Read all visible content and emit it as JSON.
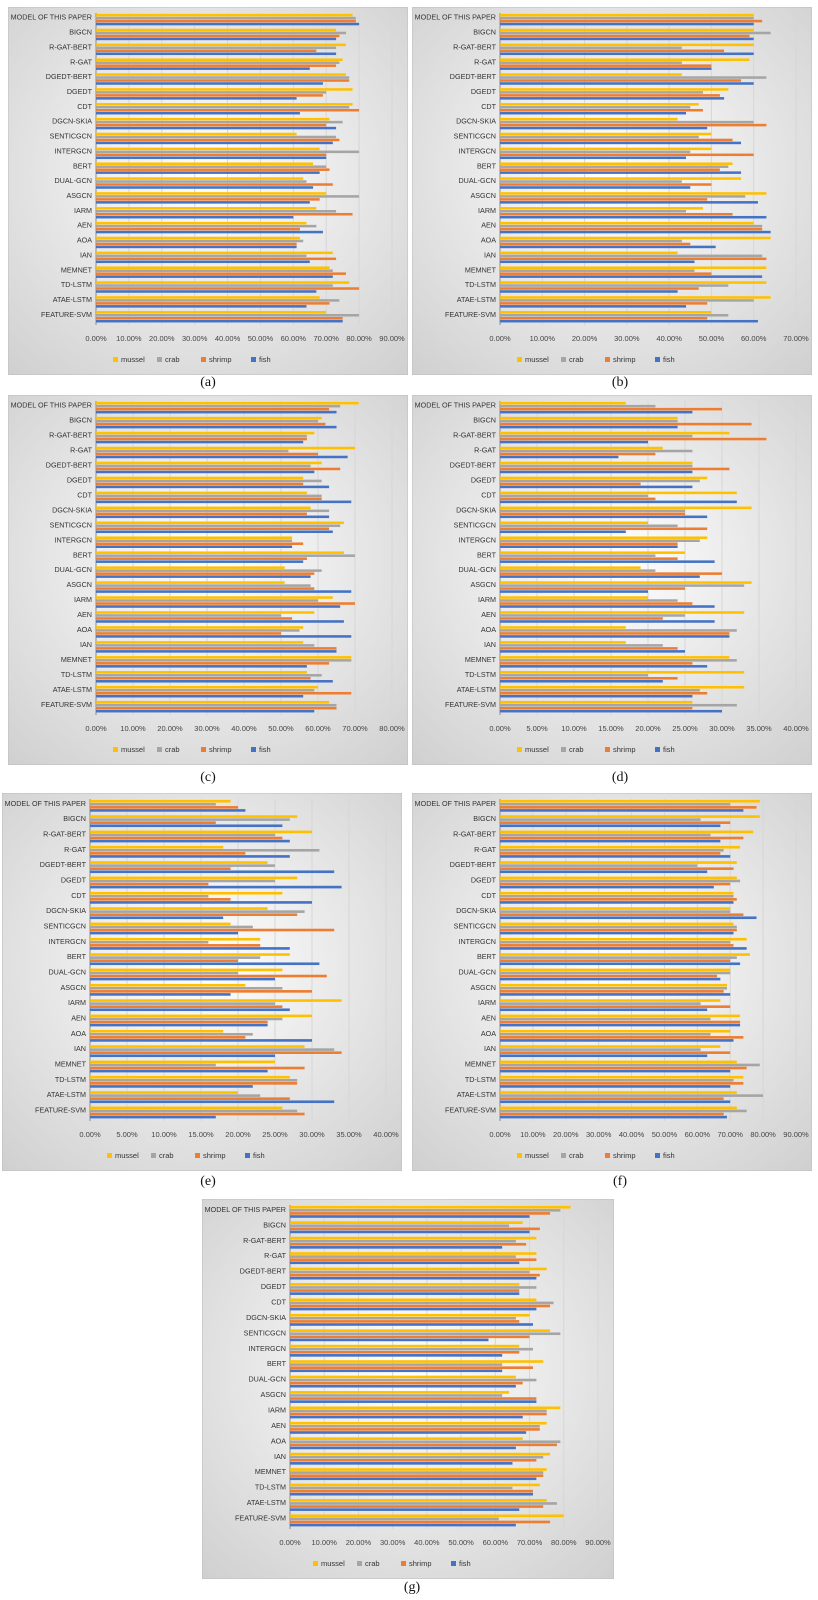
{
  "colors": {
    "mussel": "#FFC000",
    "crab": "#A5A5A5",
    "shrimp": "#ED7D31",
    "fish": "#4472C4"
  },
  "chart_data": [
    {
      "type": "bar",
      "caption": "(a)",
      "categories": [
        "MODEL OF THIS PAPER",
        "BIGCN",
        "R-GAT-BERT",
        "R-GAT",
        "DGEDT-BERT",
        "DGEDT",
        "CDT",
        "DGCN-SKIA",
        "SENTICGCN",
        "INTERGCN",
        "BERT",
        "DUAL-GCN",
        "ASGCN",
        "IARM",
        "AEN",
        "AOA",
        "IAN",
        "MEMNET",
        "TD-LSTM",
        "ATAE-LSTM",
        "FEATURE-SVM"
      ],
      "tick_labels": [
        "0.00%",
        "10.00%",
        "20.00%",
        "30.00%",
        "40.00%",
        "50.00%",
        "60.00%",
        "70.00%",
        "80.00%",
        "90.00%"
      ],
      "xlim": [
        0,
        90
      ],
      "legend": "bottom",
      "series": [
        {
          "name": "mussel",
          "values": [
            78,
            73,
            76,
            75,
            76,
            78,
            78,
            71,
            61,
            68,
            66,
            63,
            70,
            67,
            64,
            62,
            72,
            71,
            77,
            68,
            70
          ]
        },
        {
          "name": "crab",
          "values": [
            79,
            76,
            73,
            74,
            77,
            70,
            77,
            75,
            73,
            80,
            70,
            64,
            80,
            73,
            67,
            63,
            64,
            72,
            72,
            74,
            80
          ]
        },
        {
          "name": "shrimp",
          "values": [
            79,
            74,
            67,
            73,
            77,
            69,
            80,
            70,
            74,
            70,
            71,
            72,
            68,
            78,
            62,
            61,
            73,
            76,
            80,
            71,
            75
          ]
        },
        {
          "name": "fish",
          "values": [
            80,
            73,
            73,
            65,
            69,
            61,
            62,
            73,
            72,
            70,
            68,
            66,
            65,
            60,
            69,
            61,
            65,
            72,
            67,
            64,
            75
          ]
        }
      ]
    },
    {
      "type": "bar",
      "caption": "(b)",
      "categories": [
        "MODEL OF THIS PAPER",
        "BIGCN",
        "R-GAT-BERT",
        "R-GAT",
        "DGEDT-BERT",
        "DGEDT",
        "CDT",
        "DGCN-SKIA",
        "SENTICGCN",
        "INTERGCN",
        "BERT",
        "DUAL-GCN",
        "ASGCN",
        "IARM",
        "AEN",
        "AOA",
        "IAN",
        "MEMNET",
        "TD-LSTM",
        "ATAE-LSTM",
        "FEATURE-SVM"
      ],
      "tick_labels": [
        "0.00%",
        "10.00%",
        "20.00%",
        "30.00%",
        "40.00%",
        "50.00%",
        "60.00%",
        "70.00%"
      ],
      "xlim": [
        0,
        70
      ],
      "legend": "bottom",
      "series": [
        {
          "name": "mussel",
          "values": [
            60,
            60,
            60,
            59,
            43,
            54,
            47,
            42,
            50,
            50,
            55,
            57,
            63,
            48,
            60,
            64,
            42,
            63,
            63,
            64,
            50
          ]
        },
        {
          "name": "crab",
          "values": [
            60,
            64,
            43,
            43,
            63,
            48,
            45,
            60,
            47,
            45,
            54,
            43,
            58,
            44,
            62,
            43,
            62,
            46,
            54,
            60,
            54
          ]
        },
        {
          "name": "shrimp",
          "values": [
            62,
            59,
            53,
            50,
            57,
            52,
            48,
            63,
            55,
            60,
            52,
            50,
            49,
            55,
            62,
            45,
            63,
            50,
            47,
            49,
            49
          ]
        },
        {
          "name": "fish",
          "values": [
            60,
            60,
            60,
            50,
            60,
            53,
            44,
            49,
            57,
            44,
            57,
            45,
            61,
            63,
            64,
            51,
            46,
            62,
            42,
            44,
            61
          ]
        }
      ]
    },
    {
      "type": "bar",
      "caption": "(c)",
      "categories": [
        "MODEL OF THIS PAPER",
        "BIGCN",
        "R-GAT-BERT",
        "R-GAT",
        "DGEDT-BERT",
        "DGEDT",
        "CDT",
        "DGCN-SKIA",
        "SENTICGCN",
        "INTERGCN",
        "BERT",
        "DUAL-GCN",
        "ASGCN",
        "IARM",
        "AEN",
        "AOA",
        "IAN",
        "MEMNET",
        "TD-LSTM",
        "ATAE-LSTM",
        "FEATURE-SVM"
      ],
      "tick_labels": [
        "0.00%",
        "10.00%",
        "20.00%",
        "30.00%",
        "40.00%",
        "50.00%",
        "60.00%",
        "70.00%",
        "80.00%"
      ],
      "xlim": [
        0,
        80
      ],
      "legend": "bottom",
      "series": [
        {
          "name": "mussel",
          "values": [
            71,
            61,
            59,
            70,
            61,
            56,
            57,
            58,
            67,
            53,
            67,
            51,
            51,
            64,
            59,
            56,
            56,
            69,
            57,
            60,
            63
          ]
        },
        {
          "name": "crab",
          "values": [
            66,
            60,
            57,
            52,
            58,
            61,
            61,
            63,
            66,
            53,
            70,
            61,
            58,
            60,
            50,
            55,
            59,
            69,
            61,
            59,
            65
          ]
        },
        {
          "name": "shrimp",
          "values": [
            63,
            62,
            57,
            60,
            66,
            56,
            61,
            57,
            63,
            56,
            57,
            59,
            59,
            70,
            53,
            50,
            65,
            63,
            58,
            69,
            65
          ]
        },
        {
          "name": "fish",
          "values": [
            65,
            65,
            56,
            68,
            59,
            63,
            69,
            63,
            64,
            53,
            56,
            58,
            69,
            66,
            67,
            69,
            65,
            57,
            64,
            56,
            59
          ]
        }
      ]
    },
    {
      "type": "bar",
      "caption": "(d)",
      "categories": [
        "MODEL OF THIS PAPER",
        "BIGCN",
        "R-GAT-BERT",
        "R-GAT",
        "DGEDT-BERT",
        "DGEDT",
        "CDT",
        "DGCN-SKIA",
        "SENTICGCN",
        "INTERGCN",
        "BERT",
        "DUAL-GCN",
        "ASGCN",
        "IARM",
        "AEN",
        "AOA",
        "IAN",
        "MEMNET",
        "TD-LSTM",
        "ATAE-LSTM",
        "FEATURE-SVM"
      ],
      "tick_labels": [
        "0.00%",
        "5.00%",
        "10.00%",
        "15.00%",
        "20.00%",
        "25.00%",
        "30.00%",
        "35.00%",
        "40.00%"
      ],
      "xlim": [
        0,
        40
      ],
      "legend": "bottom",
      "series": [
        {
          "name": "mussel",
          "values": [
            17,
            24,
            31,
            22,
            26,
            28,
            32,
            34,
            20,
            28,
            25,
            19,
            34,
            20,
            33,
            17,
            17,
            31,
            33,
            33,
            26
          ]
        },
        {
          "name": "crab",
          "values": [
            21,
            24,
            26,
            26,
            26,
            27,
            20,
            25,
            24,
            27,
            21,
            21,
            33,
            24,
            25,
            32,
            22,
            32,
            20,
            27,
            32
          ]
        },
        {
          "name": "shrimp",
          "values": [
            30,
            34,
            36,
            21,
            31,
            19,
            21,
            25,
            28,
            24,
            24,
            30,
            25,
            26,
            22,
            31,
            24,
            26,
            24,
            28,
            26
          ]
        },
        {
          "name": "fish",
          "values": [
            26,
            24,
            20,
            16,
            26,
            26,
            32,
            28,
            17,
            24,
            29,
            27,
            20,
            29,
            29,
            31,
            25,
            28,
            22,
            26,
            30
          ]
        }
      ]
    },
    {
      "type": "bar",
      "caption": "(e)",
      "categories": [
        "MODEL OF THIS PAPER",
        "BIGCN",
        "R-GAT-BERT",
        "R-GAT",
        "DGEDT-BERT",
        "DGEDT",
        "CDT",
        "DGCN-SKIA",
        "SENTICGCN",
        "INTERGCN",
        "BERT",
        "DUAL-GCN",
        "ASGCN",
        "IARM",
        "AEN",
        "AOA",
        "IAN",
        "MEMNET",
        "TD-LSTM",
        "ATAE-LSTM",
        "FEATURE-SVM"
      ],
      "tick_labels": [
        "0.00%",
        "5.00%",
        "10.00%",
        "15.00%",
        "20.00%",
        "25.00%",
        "30.00%",
        "35.00%",
        "40.00%"
      ],
      "xlim": [
        0,
        40
      ],
      "legend": "bottom",
      "series": [
        {
          "name": "mussel",
          "values": [
            19,
            28,
            30,
            18,
            24,
            28,
            26,
            24,
            19,
            23,
            27,
            26,
            21,
            34,
            30,
            18,
            29,
            25,
            27,
            20,
            26
          ]
        },
        {
          "name": "crab",
          "values": [
            17,
            27,
            25,
            31,
            25,
            25,
            16,
            29,
            22,
            16,
            23,
            20,
            26,
            25,
            26,
            22,
            33,
            17,
            28,
            23,
            28
          ]
        },
        {
          "name": "shrimp",
          "values": [
            20,
            17,
            26,
            21,
            19,
            16,
            19,
            28,
            33,
            23,
            20,
            32,
            30,
            26,
            24,
            21,
            34,
            29,
            28,
            27,
            29
          ]
        },
        {
          "name": "fish",
          "values": [
            21,
            26,
            27,
            27,
            33,
            34,
            30,
            18,
            20,
            27,
            31,
            25,
            19,
            27,
            24,
            30,
            25,
            24,
            22,
            33,
            17
          ]
        }
      ]
    },
    {
      "type": "bar",
      "caption": "(f)",
      "categories": [
        "MODEL OF THIS PAPER",
        "BIGCN",
        "R-GAT-BERT",
        "R-GAT",
        "DGEDT-BERT",
        "DGEDT",
        "CDT",
        "DGCN-SKIA",
        "SENTICGCN",
        "INTERGCN",
        "BERT",
        "DUAL-GCN",
        "ASGCN",
        "IARM",
        "AEN",
        "AOA",
        "IAN",
        "MEMNET",
        "TD-LSTM",
        "ATAE-LSTM",
        "FEATURE-SVM"
      ],
      "tick_labels": [
        "0.00%",
        "10.00%",
        "20.00%",
        "30.00%",
        "40.00%",
        "50.00%",
        "60.00%",
        "70.00%",
        "80.00%",
        "90.00%"
      ],
      "xlim": [
        0,
        90
      ],
      "legend": "bottom",
      "series": [
        {
          "name": "mussel",
          "values": [
            79,
            79,
            77,
            73,
            72,
            72,
            71,
            70,
            71,
            75,
            76,
            70,
            69,
            67,
            73,
            70,
            67,
            72,
            74,
            72,
            72
          ]
        },
        {
          "name": "crab",
          "values": [
            70,
            61,
            64,
            68,
            60,
            73,
            71,
            70,
            72,
            70,
            72,
            70,
            69,
            61,
            64,
            64,
            61,
            79,
            71,
            80,
            75
          ]
        },
        {
          "name": "shrimp",
          "values": [
            78,
            70,
            74,
            67,
            71,
            70,
            72,
            74,
            72,
            71,
            70,
            66,
            68,
            70,
            73,
            74,
            70,
            75,
            74,
            68,
            68
          ]
        },
        {
          "name": "fish",
          "values": [
            74,
            67,
            67,
            70,
            63,
            65,
            71,
            78,
            71,
            75,
            73,
            67,
            70,
            63,
            73,
            71,
            63,
            70,
            70,
            70,
            69
          ]
        }
      ]
    },
    {
      "type": "bar",
      "caption": "(g)",
      "categories": [
        "MODEL OF THIS PAPER",
        "BIGCN",
        "R-GAT-BERT",
        "R-GAT",
        "DGEDT-BERT",
        "DGEDT",
        "CDT",
        "DGCN-SKIA",
        "SENTICGCN",
        "INTERGCN",
        "BERT",
        "DUAL-GCN",
        "ASGCN",
        "IARM",
        "AEN",
        "AOA",
        "IAN",
        "MEMNET",
        "TD-LSTM",
        "ATAE-LSTM",
        "FEATURE-SVM"
      ],
      "tick_labels": [
        "0.00%",
        "10.00%",
        "20.00%",
        "30.00%",
        "40.00%",
        "50.00%",
        "60.00%",
        "70.00%",
        "80.00%",
        "90.00%"
      ],
      "xlim": [
        0,
        90
      ],
      "legend": "bottom",
      "series": [
        {
          "name": "mussel",
          "values": [
            82,
            68,
            72,
            72,
            75,
            67,
            72,
            70,
            76,
            67,
            74,
            66,
            64,
            79,
            75,
            68,
            76,
            75,
            73,
            75,
            80
          ]
        },
        {
          "name": "crab",
          "values": [
            79,
            64,
            66,
            66,
            70,
            72,
            77,
            66,
            79,
            71,
            62,
            72,
            62,
            75,
            73,
            79,
            74,
            74,
            65,
            78,
            61
          ]
        },
        {
          "name": "shrimp",
          "values": [
            76,
            73,
            69,
            72,
            73,
            67,
            76,
            67,
            70,
            67,
            71,
            68,
            72,
            75,
            73,
            78,
            72,
            74,
            71,
            74,
            76
          ]
        },
        {
          "name": "fish",
          "values": [
            70,
            70,
            62,
            67,
            72,
            67,
            72,
            71,
            58,
            62,
            62,
            66,
            72,
            68,
            69,
            66,
            65,
            72,
            71,
            67,
            66
          ]
        }
      ]
    }
  ]
}
